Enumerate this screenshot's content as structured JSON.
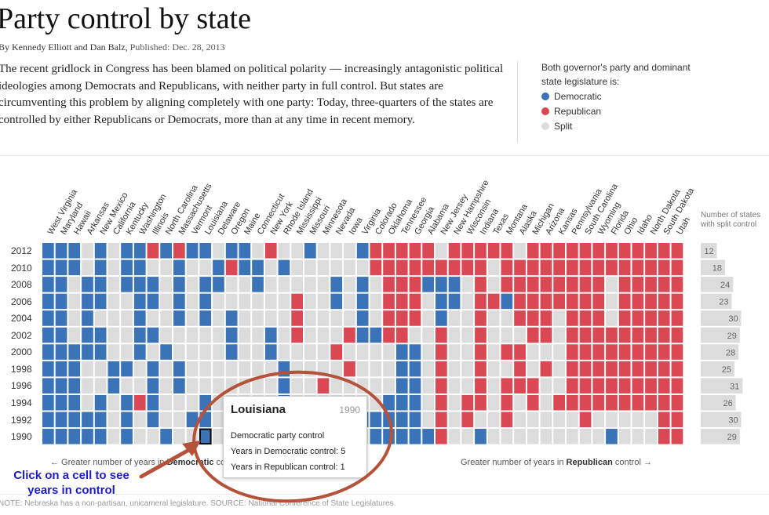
{
  "header": {
    "title": "Party control by state",
    "byline_authors": "By Kennedy Elliott and Dan Balz,",
    "byline_published": "Published: Dec. 28, 2013",
    "intro": "The recent gridlock in Congress has been blamed on political polarity — increasingly antagonistic political ideologies among Democrats and Republicans, with neither party in full control. But states are circumventing this problem by aligning completely with one party: Today, three-quarters of the states are controlled by either Republicans or Democrats, more than at any time in recent memory."
  },
  "legend": {
    "title": "Both governor's party and dominant state legislature is:",
    "items": [
      {
        "label": "Democratic",
        "color": "#3a73b7"
      },
      {
        "label": "Republican",
        "color": "#d94853"
      },
      {
        "label": "Split",
        "color": "#dcdcdc"
      }
    ]
  },
  "split_header": "Number of states with split control",
  "bottom": {
    "left_prefix": "← Greater number of years in",
    "left_bold": "Democratic",
    "left_suffix": "control",
    "right_prefix": "Greater number of years in",
    "right_bold": "Republican",
    "right_suffix": "control →"
  },
  "note": "NOTE: Nebraska has a non-partisan, unicameral legislature. SOURCE: National Conference of State Legislatures.",
  "tooltip": {
    "state": "Louisiana",
    "year": "1990",
    "status": "Democratic party control",
    "dem_years": "Years in Democratic control: 5",
    "rep_years": "Years in Republican control: 1"
  },
  "callout": {
    "line1": "Click on a cell to see",
    "line2": "years in control"
  },
  "colors": {
    "D": "#3a73b7",
    "R": "#d94853",
    "S": "#dcdcdc",
    "annotation": "#b5523a",
    "callout_text": "#1c1cc8"
  },
  "chart_data": {
    "type": "heatmap",
    "title": "Party control by state",
    "states": [
      "West Virginia",
      "Maryland",
      "Hawaii",
      "Arkansas",
      "New Mexico",
      "California",
      "Kentucky",
      "Washington",
      "Illinois",
      "North Carolina",
      "Massachusetts",
      "Vermont",
      "Louisiana",
      "Delaware",
      "Oregon",
      "Maine",
      "Connecticut",
      "New York",
      "Rhode Island",
      "Mississippi",
      "Missouri",
      "Minnesota",
      "Nevada",
      "Iowa",
      "Virginia",
      "Colorado",
      "Oklahoma",
      "Tennessee",
      "Georgia",
      "Alabama",
      "New Jersey",
      "New Hampshire",
      "Wisconsin",
      "Indiana",
      "Texas",
      "Montana",
      "Alaska",
      "Michigan",
      "Arizona",
      "Kansas",
      "Pennsylvania",
      "South Carolina",
      "Wyoming",
      "Florida",
      "Ohio",
      "Idaho",
      "North Dakota",
      "South Dakota",
      "Utah"
    ],
    "years": [
      "2012",
      "2010",
      "2008",
      "2006",
      "2004",
      "2002",
      "2000",
      "1998",
      "1996",
      "1994",
      "1992",
      "1990"
    ],
    "grid": [
      "DDDSDSDDRDRDDSDDSRSSDSSSDRRRRRSRRRRRSRRRRRRRRRRRR",
      "DDDSDSDDSSDSSDRDDSDSSSSSSRRRRRRRRRSRRRRRRRRRRRRRR",
      "DDSDDSDDDSDSDDSSDSSSSSDSDSRRRDDDSRSRRRRRRRRSRRRRR",
      "DDSDDSSDDSDSDSSSSSSRSSDSDSRRRSDDSRRDRRRRRRRSRRRRR",
      "DDSDSSSDSSDSDSDSSSSRSSSSDSRRRSDSSRSSRRRSRRRSRRRRR",
      "DDSDDSSDDSSSSSDSSDSRSSSRDDRRSSRSSRSSSRRSRRRRRRRRR",
      "DDDDDSSDSDSSSSDSSDSSSSRSSSSDDSRSSRSRRSSSRRRRRRRRR",
      "DDDSSDDSDSDSSSSSSSDSSSSRSSSDDSRSSRSSRSRSRRRRRRRRR",
      "DDDSSDSSDSDSSSSSSSDSSRSSSSSDDSRSSRSRRRSSRRRRRRRRR",
      "DDDSDSDRDSSSDSSSSSDSSSSSSSDDDSRSRRSRSRSRRRRRRRRRR",
      "DDDDDSDSDSSDDSSDSSDSSSSSDDDDDSRSRSSRSSSSSRSSSSSRR",
      "DDDDDSDSSDSSDSSSSSDSSSSSSDDDDDRSSDSSSSSSSSSDSSSRR"
    ],
    "split_counts": [
      12,
      18,
      24,
      23,
      30,
      29,
      28,
      25,
      31,
      26,
      30,
      29
    ],
    "split_max": 50,
    "selected": {
      "state": "Louisiana",
      "year": "1990"
    }
  }
}
